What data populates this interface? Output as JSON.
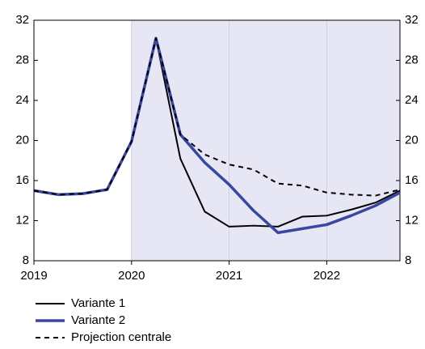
{
  "chart_data": {
    "type": "line",
    "x": [
      2019,
      2019.25,
      2019.5,
      2019.75,
      2020,
      2020.25,
      2020.5,
      2020.75,
      2021,
      2021.25,
      2021.5,
      2021.75,
      2022,
      2022.25,
      2022.5,
      2022.75
    ],
    "series": [
      {
        "name": "Variante 1",
        "color": "#000000",
        "values": [
          15.0,
          14.6,
          14.7,
          15.1,
          19.9,
          30.2,
          18.2,
          12.9,
          11.4,
          11.5,
          11.4,
          12.4,
          12.5,
          13.1,
          13.8,
          15.0
        ]
      },
      {
        "name": "Variante 2",
        "color": "#3a47a0",
        "values": [
          15.0,
          14.6,
          14.7,
          15.1,
          19.9,
          30.2,
          20.6,
          17.8,
          15.6,
          13.0,
          10.8,
          11.2,
          11.6,
          12.5,
          13.5,
          14.8
        ]
      },
      {
        "name": "Projection centrale",
        "color": "#000000",
        "dashed": true,
        "values": [
          15.0,
          14.6,
          14.7,
          15.1,
          19.9,
          30.2,
          20.6,
          18.6,
          17.6,
          17.1,
          15.7,
          15.5,
          14.8,
          14.6,
          14.5,
          15.1
        ]
      }
    ],
    "xlim": [
      2019,
      2022.75
    ],
    "xticks": [
      2019,
      2020,
      2021,
      2022
    ],
    "ylim": [
      8,
      32
    ],
    "yticks": [
      8,
      12,
      16,
      20,
      24,
      28,
      32
    ],
    "y2lim": [
      8,
      32
    ],
    "y2ticks": [
      8,
      12,
      16,
      20,
      24,
      28,
      32
    ],
    "shaded_region": [
      2020,
      2022.75
    ],
    "shade_color": "#e6e6f5"
  }
}
